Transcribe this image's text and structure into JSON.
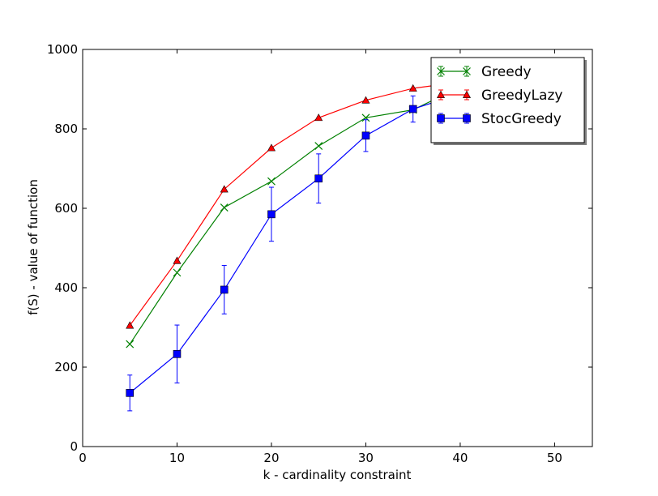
{
  "chart_data": {
    "type": "line",
    "title": "",
    "xlabel": "k - cardinality constraint",
    "ylabel": "f(S) - value of function",
    "xlim": [
      0,
      54
    ],
    "ylim": [
      0,
      1000
    ],
    "xticks": [
      0,
      10,
      20,
      30,
      40,
      50
    ],
    "yticks": [
      0,
      200,
      400,
      600,
      800,
      1000
    ],
    "xtick_labels": [
      "0",
      "10",
      "20",
      "30",
      "40",
      "50"
    ],
    "ytick_labels": [
      "0",
      "200",
      "400",
      "600",
      "800",
      "1000"
    ],
    "grid": false,
    "legend_position": "top-right",
    "x": [
      5,
      10,
      15,
      20,
      25,
      30,
      35,
      40
    ],
    "series": [
      {
        "name": "Greedy",
        "color": "#008000",
        "marker": "x",
        "values": [
          258,
          438,
          602,
          668,
          757,
          828,
          848,
          905
        ],
        "errors": [
          0,
          0,
          0,
          0,
          0,
          0,
          0,
          0
        ]
      },
      {
        "name": "GreedyLazy",
        "color": "#ff0000",
        "marker": "triangle",
        "values": [
          305,
          468,
          648,
          752,
          828,
          872,
          902,
          918
        ],
        "errors": [
          0,
          0,
          0,
          0,
          0,
          0,
          0,
          0
        ]
      },
      {
        "name": "StocGreedy",
        "color": "#0000ff",
        "marker": "square",
        "values": [
          135,
          233,
          395,
          585,
          675,
          783,
          850,
          888
        ],
        "errors": [
          45,
          73,
          61,
          68,
          62,
          40,
          33,
          28
        ]
      }
    ]
  }
}
